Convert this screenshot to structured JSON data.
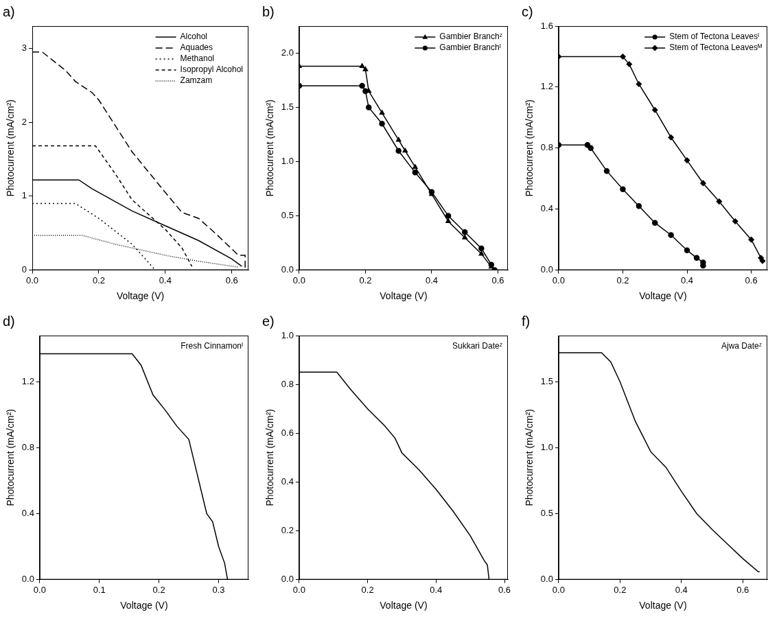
{
  "chart_data": [
    {
      "type": "line",
      "title": "a)",
      "x_label": "Voltage (V)",
      "y_label": "Photocurrent (mA/cm²)",
      "xlim": [
        0,
        0.65
      ],
      "xticks": [
        {
          "value": 0,
          "label": "0.0"
        },
        0.2,
        0.4,
        0.6
      ],
      "ylim": [
        0,
        3.3
      ],
      "yticks": [
        0,
        1,
        2,
        3
      ],
      "grid": false,
      "legend": "top right",
      "series": [
        {
          "name": "Alcohol",
          "color": "#000000",
          "marker": "none",
          "line_style": "solid",
          "x": [
            0,
            0.14,
            0.18,
            0.3,
            0.4,
            0.5,
            0.6,
            0.63
          ],
          "values": [
            1.22,
            1.22,
            1.1,
            0.8,
            0.6,
            0.4,
            0.15,
            0.05
          ]
        },
        {
          "name": "Aquades",
          "color": "#000000",
          "marker": "none",
          "line_style": "longdash",
          "x": [
            0,
            0.03,
            0.1,
            0.13,
            0.18,
            0.2,
            0.3,
            0.4,
            0.45,
            0.5,
            0.55,
            0.62,
            0.64,
            0.64
          ],
          "values": [
            2.95,
            2.95,
            2.7,
            2.55,
            2.4,
            2.3,
            1.6,
            1.05,
            0.78,
            0.7,
            0.5,
            0.2,
            0.2,
            0
          ]
        },
        {
          "name": "Methanol",
          "color": "#000000",
          "marker": "none",
          "line_style": "dotted",
          "x": [
            0,
            0.13,
            0.2,
            0.3,
            0.37
          ],
          "values": [
            0.9,
            0.9,
            0.7,
            0.35,
            0
          ]
        },
        {
          "name": "Isopropyl Alcohol",
          "color": "#000000",
          "marker": "none",
          "line_style": "dashed",
          "x": [
            0,
            0.19,
            0.25,
            0.3,
            0.4,
            0.45,
            0.48
          ],
          "values": [
            1.68,
            1.68,
            1.3,
            0.95,
            0.55,
            0.3,
            0.05
          ]
        },
        {
          "name": "Zamzam",
          "color": "#000000",
          "marker": "none",
          "line_style": "densedot",
          "x": [
            0,
            0.15,
            0.25,
            0.4,
            0.5,
            0.62
          ],
          "values": [
            0.47,
            0.47,
            0.35,
            0.2,
            0.12,
            0.04
          ]
        }
      ]
    },
    {
      "type": "line",
      "title": "b)",
      "x_label": "Voltage (V)",
      "y_label": "Photocurrent (mA/cm²)",
      "xlim": [
        0,
        0.63
      ],
      "xticks": [
        {
          "value": 0,
          "label": "0.0"
        },
        0.2,
        0.4,
        0.6
      ],
      "ylim": [
        0,
        2.25
      ],
      "yticks": [
        {
          "value": 0,
          "label": "0.0"
        },
        0.5,
        {
          "value": 1,
          "label": "1.0"
        },
        1.5,
        {
          "value": 2,
          "label": "2.0"
        }
      ],
      "grid": false,
      "legend": "top right",
      "series": [
        {
          "name": "Gambier Branchᶻ",
          "color": "#000000",
          "marker": "triangle",
          "line_style": "solid",
          "x": [
            0,
            0.19,
            0.2,
            0.21,
            0.25,
            0.3,
            0.32,
            0.35,
            0.4,
            0.45,
            0.5,
            0.55,
            0.58
          ],
          "values": [
            1.88,
            1.88,
            1.85,
            1.65,
            1.45,
            1.2,
            1.1,
            0.95,
            0.7,
            0.45,
            0.3,
            0.15,
            0.03
          ]
        },
        {
          "name": "Gambier Branchᴵ",
          "color": "#000000",
          "marker": "circle",
          "line_style": "solid",
          "x": [
            0,
            0.19,
            0.2,
            0.21,
            0.25,
            0.3,
            0.35,
            0.4,
            0.45,
            0.5,
            0.55,
            0.58,
            0.59
          ],
          "values": [
            1.7,
            1.7,
            1.65,
            1.5,
            1.35,
            1.1,
            0.9,
            0.72,
            0.5,
            0.35,
            0.2,
            0.05,
            0
          ]
        }
      ]
    },
    {
      "type": "line",
      "title": "c)",
      "x_label": "Voltage (V)",
      "y_label": "Photocurrent (mA/cm²)",
      "xlim": [
        0,
        0.65
      ],
      "xticks": [
        {
          "value": 0,
          "label": "0.0"
        },
        0.2,
        0.4,
        0.6
      ],
      "ylim": [
        0,
        1.6
      ],
      "yticks": [
        {
          "value": 0,
          "label": "0.0"
        },
        0.4,
        0.8,
        1.2,
        1.6
      ],
      "grid": false,
      "legend": "top right",
      "series": [
        {
          "name": "Stem of Tectona Leavesᴵ",
          "color": "#000000",
          "marker": "circle",
          "line_style": "solid",
          "x": [
            0,
            0.09,
            0.1,
            0.15,
            0.2,
            0.25,
            0.3,
            0.35,
            0.4,
            0.43,
            0.45,
            0.45
          ],
          "values": [
            0.82,
            0.82,
            0.8,
            0.65,
            0.53,
            0.42,
            0.31,
            0.23,
            0.13,
            0.08,
            0.05,
            0.03
          ]
        },
        {
          "name": "Stem of Tectona Leavesᴹ",
          "color": "#000000",
          "marker": "diamond",
          "line_style": "solid",
          "x": [
            0,
            0.2,
            0.22,
            0.25,
            0.3,
            0.35,
            0.4,
            0.45,
            0.5,
            0.55,
            0.6,
            0.63,
            0.635
          ],
          "values": [
            1.4,
            1.4,
            1.35,
            1.22,
            1.05,
            0.87,
            0.72,
            0.57,
            0.45,
            0.32,
            0.2,
            0.08,
            0.06
          ]
        }
      ]
    },
    {
      "type": "line",
      "title": "d)",
      "x_label": "Voltage (V)",
      "y_label": "Photocurrent (mA/cm²)",
      "xlim": [
        0,
        0.35
      ],
      "xticks": [
        {
          "value": 0,
          "label": "0.0"
        },
        0.1,
        0.2,
        0.3
      ],
      "ylim": [
        0,
        1.48
      ],
      "yticks": [
        {
          "value": 0,
          "label": "0.0"
        },
        0.4,
        0.8,
        1.2
      ],
      "grid": false,
      "legend": "top right",
      "series": [
        {
          "name": "Fresh Cinnamonᴵ",
          "color": "#000000",
          "marker": "none",
          "line_style": "solid",
          "x": [
            0,
            0.155,
            0.17,
            0.19,
            0.21,
            0.23,
            0.25,
            0.26,
            0.27,
            0.28,
            0.29,
            0.3,
            0.31,
            0.315
          ],
          "values": [
            1.37,
            1.37,
            1.3,
            1.12,
            1.03,
            0.93,
            0.85,
            0.7,
            0.55,
            0.4,
            0.35,
            0.2,
            0.1,
            0
          ]
        }
      ]
    },
    {
      "type": "line",
      "title": "e)",
      "x_label": "Voltage (V)",
      "y_label": "Photocurrent (mA/cm²)",
      "xlim": [
        0,
        0.61
      ],
      "xticks": [
        {
          "value": 0,
          "label": "0.0"
        },
        0.2,
        0.4,
        0.6
      ],
      "ylim": [
        0,
        1
      ],
      "yticks": [
        {
          "value": 0,
          "label": "0.0"
        },
        0.2,
        0.4,
        0.6,
        0.8,
        {
          "value": 1,
          "label": "1.0"
        }
      ],
      "grid": false,
      "legend": "top right",
      "series": [
        {
          "name": "Sukkari Dateᶻ",
          "color": "#000000",
          "marker": "none",
          "line_style": "solid",
          "x": [
            0,
            0.11,
            0.15,
            0.2,
            0.25,
            0.28,
            0.3,
            0.35,
            0.4,
            0.45,
            0.5,
            0.54,
            0.55,
            0.555
          ],
          "values": [
            0.85,
            0.85,
            0.78,
            0.7,
            0.63,
            0.58,
            0.52,
            0.45,
            0.37,
            0.28,
            0.18,
            0.08,
            0.06,
            0
          ]
        }
      ]
    },
    {
      "type": "line",
      "title": "f)",
      "x_label": "Voltage (V)",
      "y_label": "Photocurrent (mA/cm²)",
      "xlim": [
        0,
        0.68
      ],
      "xticks": [
        {
          "value": 0,
          "label": "0.0"
        },
        0.2,
        0.4,
        0.6
      ],
      "ylim": [
        0,
        1.85
      ],
      "yticks": [
        {
          "value": 0,
          "label": "0.0"
        },
        0.5,
        {
          "value": 1,
          "label": "1.0"
        },
        1.5
      ],
      "grid": false,
      "legend": "top right",
      "series": [
        {
          "name": "Ajwa Dateᶻ",
          "color": "#000000",
          "marker": "none",
          "line_style": "solid",
          "x": [
            0,
            0.14,
            0.17,
            0.2,
            0.25,
            0.3,
            0.35,
            0.4,
            0.45,
            0.5,
            0.55,
            0.6,
            0.65,
            0.655
          ],
          "values": [
            1.72,
            1.72,
            1.65,
            1.5,
            1.2,
            0.97,
            0.85,
            0.67,
            0.5,
            0.38,
            0.27,
            0.16,
            0.06,
            0.06
          ]
        }
      ]
    }
  ]
}
